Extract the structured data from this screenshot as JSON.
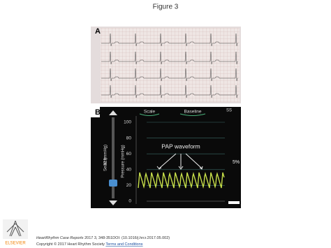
{
  "header": {
    "title": "Figure 3"
  },
  "panel_a": {
    "label": "A"
  },
  "panel_b": {
    "label": "B",
    "menu": [
      "Scale",
      "Baseline"
    ],
    "corner": "SS",
    "scale_labels": [
      "100",
      "80",
      "60",
      "40",
      "20",
      "0"
    ],
    "annotation": "PAP waveform",
    "search_label": "Search",
    "search_value": "32 (mmHg)",
    "axis_label": "Pressure (mmHg)",
    "percent": "5%"
  },
  "footer": {
    "publisher": "ELSEVIER",
    "journal": "HeartRhythm Case Reports",
    "citation": "2017 3, 348-351DOI: (10.1016/j.hrcr.2017.05.002)",
    "copyright": "Copyright © 2017 Heart Rhythm Society",
    "terms": "Terms and Conditions"
  }
}
